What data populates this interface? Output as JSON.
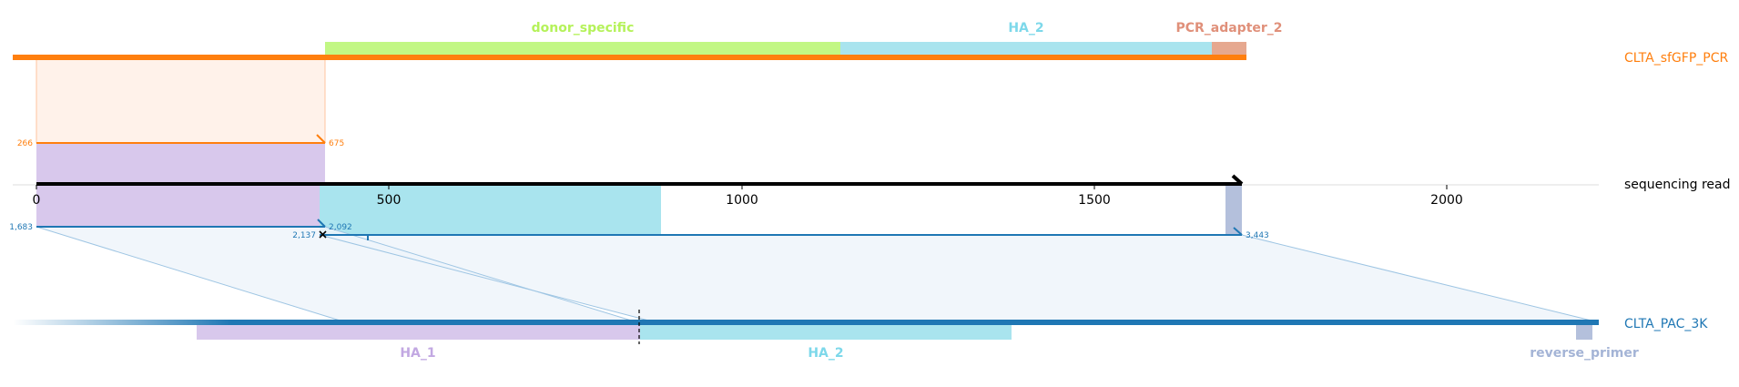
{
  "tracks": {
    "top": {
      "name": "CLTA_sfGFP_PCR",
      "color": "#ff7f0e"
    },
    "read": {
      "name": "sequencing read",
      "color": "#000000"
    },
    "bottom": {
      "name": "CLTA_PAC_3K",
      "color": "#1f77b4"
    }
  },
  "top_features": [
    {
      "name": "donor_specific",
      "color": "#c2f784",
      "text_color": "#b5f25a"
    },
    {
      "name": "HA_2",
      "color": "#a9e4ee",
      "text_color": "#7dd8ea"
    },
    {
      "name": "PCR_adapter_2",
      "color": "#e6a88f",
      "text_color": "#e0907a"
    }
  ],
  "bottom_features": [
    {
      "name": "HA_1",
      "color": "#d8c8ec",
      "text_color": "#c2a8e2"
    },
    {
      "name": "HA_2",
      "color": "#a9e4ee",
      "text_color": "#7dd8ea"
    },
    {
      "name": "reverse_primer",
      "color": "#b4c0dc",
      "text_color": "#a4b4d6"
    }
  ],
  "axis": {
    "ticks": [
      "0",
      "500",
      "1000",
      "1500",
      "2000"
    ]
  },
  "alignment_labels": {
    "top_start": "266",
    "top_end": "675",
    "bottom_start": "1,683",
    "bottom_mid_end": "2,092",
    "bottom_mid_start": "2,137",
    "bottom_end": "3,443"
  }
}
